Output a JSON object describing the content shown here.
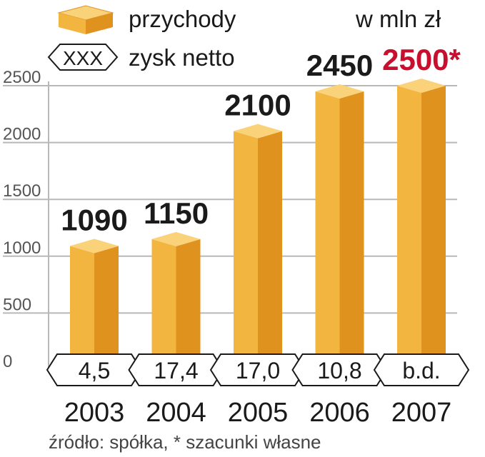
{
  "legend": {
    "revenue_label": "przychody",
    "profit_sample": "XXX",
    "profit_label": "zysk netto"
  },
  "unit": "w mln zł",
  "source": "źródło: spółka, * szacunki własne",
  "chart_data": {
    "type": "bar",
    "categories": [
      "2003",
      "2004",
      "2005",
      "2006",
      "2007"
    ],
    "series": [
      {
        "name": "przychody",
        "values": [
          1090,
          1150,
          2100,
          2450,
          2500
        ]
      }
    ],
    "value_labels": [
      "1090",
      "1150",
      "2100",
      "2450",
      "2500*"
    ],
    "net_profit_labels": [
      "4,5",
      "17,4",
      "17,0",
      "10,8",
      "b.d."
    ],
    "y_ticks": [
      "0",
      "500",
      "1000",
      "1500",
      "2000",
      "2500"
    ],
    "ylim": [
      0,
      2500
    ],
    "grid": true,
    "colors": {
      "bar_front": "#f2b540",
      "bar_side": "#e0921f",
      "bar_top": "#f9d27a",
      "grid": "#b8b8b8",
      "estimate_label": "#c8102e",
      "text": "#1a1a1a"
    }
  }
}
